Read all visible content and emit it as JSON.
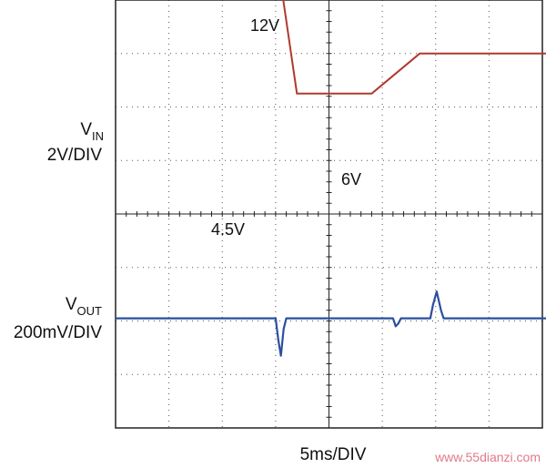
{
  "chart_data": {
    "type": "line",
    "title": "",
    "channels": [
      {
        "axis_name": "V",
        "axis_subscript": "IN",
        "scale_label": "2V/DIV",
        "color": "#b03a2e",
        "annotations": [
          "12V",
          "4.5V",
          "6V"
        ],
        "points": [
          [
            0,
            12
          ],
          [
            2.85,
            12
          ],
          [
            3.4,
            4.5
          ],
          [
            4.8,
            4.5
          ],
          [
            5.7,
            6
          ],
          [
            5.9,
            6
          ],
          [
            10,
            6
          ]
        ]
      },
      {
        "axis_name": "V",
        "axis_subscript": "OUT",
        "scale_label": "200mV/DIV",
        "color": "#2b4fa0",
        "points": [
          [
            0,
            0
          ],
          [
            3.0,
            0
          ],
          [
            3.05,
            -0.08
          ],
          [
            3.1,
            -0.14
          ],
          [
            3.15,
            -0.04
          ],
          [
            3.2,
            0
          ],
          [
            5.2,
            0
          ],
          [
            5.25,
            -0.03
          ],
          [
            5.3,
            -0.02
          ],
          [
            5.35,
            0
          ],
          [
            5.9,
            0
          ],
          [
            5.95,
            0.05
          ],
          [
            6.02,
            0.1
          ],
          [
            6.1,
            0.03
          ],
          [
            6.15,
            0
          ],
          [
            10,
            0
          ]
        ]
      }
    ],
    "xlabel": "5ms/DIV",
    "grid": true,
    "divisions": {
      "x": 8,
      "y": 8
    }
  },
  "watermark": "www.55dianzi.com"
}
